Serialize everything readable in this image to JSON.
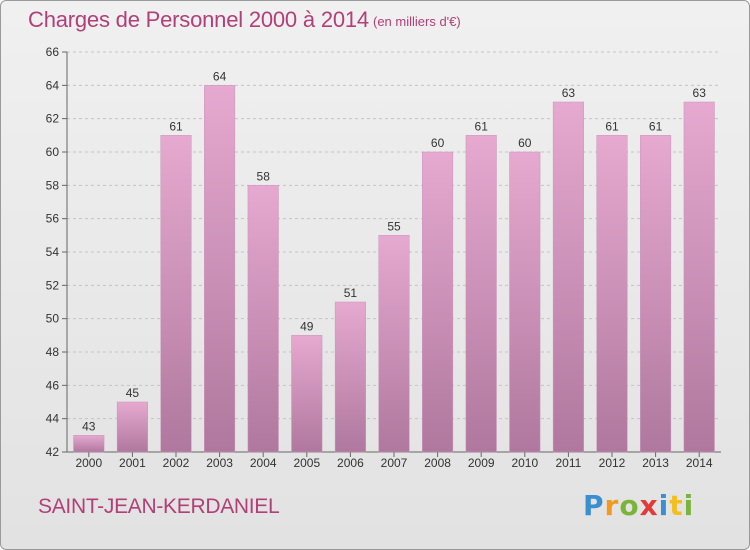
{
  "header": {
    "title": "Charges de Personnel 2000 à 2014",
    "subtitle": "(en milliers d'€)"
  },
  "footer": {
    "place": "SAINT-JEAN-KERDANIEL",
    "logo": {
      "text": "Proxiti",
      "letters": [
        "P",
        "r",
        "o",
        "x",
        "i",
        "t",
        "i"
      ],
      "colors": [
        "#3a8fd0",
        "#f29a1e",
        "#7ab53a",
        "#e13a3a",
        "#3a8fd0",
        "#f2c01e",
        "#7ab53a"
      ]
    }
  },
  "colors": {
    "bar_top": "#e6a9d0",
    "bar_bottom": "#b0789e",
    "text": "#b13f78"
  },
  "chart_data": {
    "type": "bar",
    "categories": [
      "2000",
      "2001",
      "2002",
      "2003",
      "2004",
      "2005",
      "2006",
      "2007",
      "2008",
      "2009",
      "2010",
      "2011",
      "2012",
      "2013",
      "2014"
    ],
    "values": [
      43,
      45,
      61,
      64,
      58,
      49,
      51,
      55,
      60,
      61,
      60,
      63,
      61,
      61,
      63
    ],
    "ylim": [
      42,
      66
    ],
    "yticks": [
      42,
      44,
      46,
      48,
      50,
      52,
      54,
      56,
      58,
      60,
      62,
      64,
      66
    ],
    "grid": true
  }
}
